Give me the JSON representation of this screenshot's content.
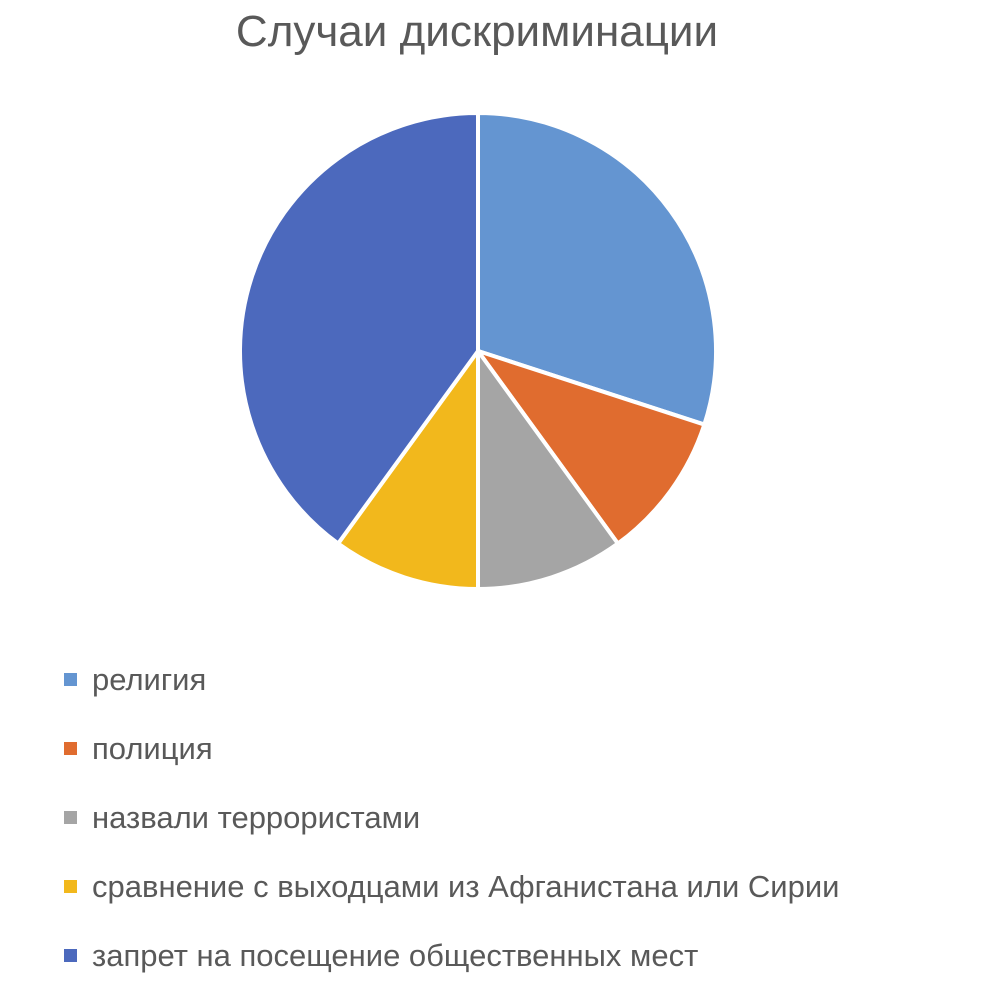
{
  "chart_data": {
    "type": "pie",
    "title": "Случаи дискриминации",
    "categories": [
      "религия",
      "полиция",
      "назвали террористами",
      "сравнение с выходцами из Афганистана или Сирии",
      "запрет на посещение общественных мест"
    ],
    "values": [
      30,
      10,
      10,
      10,
      40
    ],
    "colors": [
      "#6495D1",
      "#E06C2F",
      "#A5A5A5",
      "#F2B81C",
      "#4C69BD"
    ],
    "legend_position": "bottom",
    "start_angle_deg": 0,
    "direction": "clockwise"
  }
}
